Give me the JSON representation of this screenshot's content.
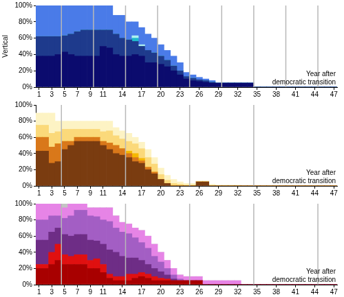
{
  "chart_data": [
    {
      "type": "bar",
      "stacked": true,
      "grid": false,
      "ylabel": "Vertical",
      "xlabel": [
        "Year after",
        "democratic transition"
      ],
      "x": [
        1,
        2,
        3,
        4,
        5,
        6,
        7,
        8,
        9,
        10,
        11,
        12,
        13,
        14,
        15,
        16,
        17,
        18,
        19,
        20,
        21,
        22,
        23,
        24,
        25,
        26,
        27,
        28,
        29,
        30,
        31,
        32,
        33,
        34,
        35,
        36,
        37,
        38,
        39,
        40,
        41,
        42,
        43,
        44,
        45,
        46,
        47
      ],
      "xlim": [
        0.5,
        47.5
      ],
      "xticks": [
        1,
        3,
        5,
        7,
        9,
        11,
        14,
        17,
        20,
        23,
        26,
        29,
        32,
        35,
        38,
        41,
        44,
        47
      ],
      "ylim": [
        0,
        100
      ],
      "yticks": [
        {
          "value": 0,
          "label": "0%"
        },
        {
          "value": 20,
          "label": "20%"
        },
        {
          "value": 40,
          "label": "40%"
        },
        {
          "value": 60,
          "label": "60%"
        },
        {
          "value": 80,
          "label": "80%"
        },
        {
          "value": 100,
          "label": "100%"
        }
      ],
      "vlines": [
        4.5,
        9.5,
        14.5,
        19.5,
        24.5,
        29.5,
        34.5,
        39.5,
        44.5
      ],
      "series": [
        {
          "color": "#0b0b6e",
          "values": [
            38,
            38,
            38,
            40,
            43,
            40,
            38,
            38,
            38,
            38,
            50,
            48,
            40,
            38,
            38,
            40,
            38,
            30,
            30,
            28,
            25,
            20,
            15,
            10,
            8,
            7,
            6,
            5,
            5,
            5,
            5,
            5,
            5,
            5,
            0,
            0,
            0,
            0,
            0,
            0,
            0,
            0,
            0,
            0,
            0,
            0,
            0
          ]
        },
        {
          "color": "#1e3a8c",
          "values": [
            24,
            24,
            24,
            22,
            20,
            25,
            30,
            32,
            32,
            32,
            20,
            22,
            25,
            22,
            20,
            16,
            12,
            15,
            12,
            10,
            8,
            6,
            5,
            3,
            3,
            2,
            2,
            1,
            0,
            0,
            0,
            0,
            0,
            0,
            0,
            0,
            0,
            0,
            0,
            0,
            0,
            0,
            0,
            0,
            0,
            0,
            0
          ]
        },
        {
          "color": "#1fb8cc",
          "values": [
            0,
            0,
            0,
            0,
            0,
            0,
            0,
            0,
            0,
            0,
            0,
            0,
            0,
            0,
            0,
            4,
            0,
            0,
            0,
            0,
            0,
            0,
            0,
            0,
            0,
            0,
            0,
            0,
            0,
            0,
            0,
            0,
            0,
            0,
            0,
            0,
            0,
            0,
            0,
            0,
            0,
            0,
            0,
            0,
            0,
            0,
            0
          ]
        },
        {
          "color": "#aef0f0",
          "values": [
            0,
            0,
            0,
            0,
            0,
            0,
            0,
            0,
            0,
            0,
            0,
            0,
            0,
            0,
            0,
            3,
            2,
            0,
            0,
            0,
            0,
            0,
            0,
            0,
            0,
            0,
            0,
            0,
            0,
            0,
            0,
            0,
            0,
            0,
            0,
            0,
            0,
            0,
            0,
            0,
            0,
            0,
            0,
            0,
            0,
            0,
            0
          ]
        },
        {
          "color": "#4a7be8",
          "values": [
            38,
            38,
            38,
            38,
            37,
            35,
            32,
            30,
            30,
            30,
            30,
            30,
            23,
            28,
            22,
            17,
            21,
            20,
            18,
            14,
            12,
            12,
            10,
            5,
            4,
            3,
            2,
            2,
            0,
            0,
            0,
            0,
            0,
            0,
            0,
            0,
            0,
            0,
            0,
            0,
            0,
            0,
            0,
            0,
            0,
            0,
            0
          ]
        }
      ]
    },
    {
      "type": "bar",
      "stacked": true,
      "grid": false,
      "xlabel": [
        "Year after",
        "democratic transition"
      ],
      "x": [
        1,
        2,
        3,
        4,
        5,
        6,
        7,
        8,
        9,
        10,
        11,
        12,
        13,
        14,
        15,
        16,
        17,
        18,
        19,
        20,
        21,
        22,
        23,
        24,
        25,
        26,
        27,
        28,
        29,
        30,
        31,
        32,
        33,
        34,
        35,
        36,
        37,
        38,
        39,
        40,
        41,
        42,
        43,
        44,
        45,
        46,
        47
      ],
      "xlim": [
        0.5,
        47.5
      ],
      "xticks": [
        1,
        3,
        5,
        7,
        9,
        11,
        14,
        17,
        20,
        23,
        26,
        29,
        32,
        35,
        38,
        41,
        44,
        47
      ],
      "ylim": [
        0,
        100
      ],
      "yticks": [
        {
          "value": 0,
          "label": "0%"
        },
        {
          "value": 20,
          "label": "20%"
        },
        {
          "value": 40,
          "label": "40%"
        },
        {
          "value": 60,
          "label": "60%"
        },
        {
          "value": 80,
          "label": "80%"
        },
        {
          "value": 100,
          "label": "100%"
        }
      ],
      "vlines": [
        4.5,
        14.5,
        24.5,
        34.5
      ],
      "series": [
        {
          "color": "#7a3c10",
          "values": [
            43,
            43,
            28,
            30,
            45,
            50,
            55,
            55,
            55,
            55,
            50,
            45,
            40,
            38,
            35,
            30,
            28,
            20,
            15,
            8,
            3,
            0,
            0,
            0,
            0,
            5,
            5,
            0,
            0,
            0,
            0,
            0,
            0,
            0,
            0,
            0,
            0,
            0,
            0,
            0,
            0,
            0,
            0,
            0,
            0,
            0,
            0
          ]
        },
        {
          "color": "#d9781a",
          "values": [
            17,
            17,
            20,
            22,
            10,
            5,
            5,
            5,
            5,
            5,
            5,
            8,
            10,
            8,
            5,
            5,
            3,
            3,
            2,
            0,
            0,
            0,
            0,
            0,
            0,
            0,
            0,
            0,
            0,
            0,
            0,
            0,
            0,
            0,
            0,
            0,
            0,
            0,
            0,
            0,
            0,
            0,
            0,
            0,
            0,
            0,
            0
          ]
        },
        {
          "color": "#f5b800",
          "values": [
            0,
            0,
            0,
            0,
            0,
            0,
            0,
            0,
            0,
            0,
            0,
            0,
            0,
            0,
            3,
            5,
            3,
            0,
            0,
            0,
            0,
            0,
            0,
            0,
            0,
            0,
            0,
            0,
            0,
            0,
            0,
            0,
            0,
            0,
            0,
            0,
            0,
            0,
            0,
            0,
            0,
            0,
            0,
            0,
            0,
            0,
            0
          ]
        },
        {
          "color": "#fbd97a",
          "values": [
            15,
            15,
            17,
            15,
            15,
            15,
            10,
            10,
            10,
            10,
            12,
            15,
            12,
            12,
            12,
            12,
            12,
            12,
            10,
            6,
            4,
            3,
            2,
            1,
            1,
            0,
            0,
            0,
            0,
            0,
            0,
            0,
            0,
            0,
            0,
            0,
            0,
            0,
            0,
            0,
            0,
            0,
            0,
            0,
            0,
            0,
            0
          ]
        },
        {
          "color": "#fdf3c4",
          "values": [
            15,
            15,
            25,
            13,
            10,
            10,
            10,
            10,
            10,
            10,
            13,
            12,
            10,
            10,
            10,
            8,
            8,
            10,
            8,
            8,
            6,
            5,
            3,
            2,
            2,
            1,
            1,
            2,
            1,
            1,
            1,
            1,
            0,
            0,
            0,
            0,
            0,
            0,
            0,
            0,
            0,
            0,
            0,
            0,
            0,
            0,
            0
          ]
        }
      ]
    },
    {
      "type": "bar",
      "stacked": true,
      "grid": false,
      "xlabel": [
        "Year after",
        "democratic transition"
      ],
      "x": [
        1,
        2,
        3,
        4,
        5,
        6,
        7,
        8,
        9,
        10,
        11,
        12,
        13,
        14,
        15,
        16,
        17,
        18,
        19,
        20,
        21,
        22,
        23,
        24,
        25,
        26,
        27,
        28,
        29,
        30,
        31,
        32,
        33,
        34,
        35,
        36,
        37,
        38,
        39,
        40,
        41,
        42,
        43,
        44,
        45,
        46,
        47
      ],
      "xlim": [
        0.5,
        47.5
      ],
      "xticks": [
        1,
        3,
        5,
        7,
        9,
        11,
        14,
        17,
        20,
        23,
        26,
        29,
        32,
        35,
        38,
        41,
        44,
        47
      ],
      "ylim": [
        0,
        100
      ],
      "yticks": [
        {
          "value": 0,
          "label": "0%"
        },
        {
          "value": 20,
          "label": "20%"
        },
        {
          "value": 40,
          "label": "40%"
        },
        {
          "value": 60,
          "label": "60%"
        },
        {
          "value": 80,
          "label": "80%"
        },
        {
          "value": 100,
          "label": "100%"
        }
      ],
      "vlines": [
        4.5,
        14.5,
        24.5,
        34.5,
        44.5
      ],
      "series": [
        {
          "color": "#a80000",
          "values": [
            20,
            20,
            25,
            30,
            25,
            25,
            25,
            25,
            20,
            20,
            15,
            8,
            5,
            5,
            5,
            8,
            10,
            8,
            5,
            5,
            5,
            5,
            5,
            5,
            5,
            5,
            0,
            0,
            0,
            0,
            0,
            0,
            0,
            0,
            0,
            0,
            0,
            0,
            0,
            0,
            0,
            0,
            0,
            0,
            0,
            0,
            0
          ]
        },
        {
          "color": "#e01010",
          "values": [
            5,
            5,
            15,
            20,
            12,
            10,
            12,
            12,
            10,
            12,
            10,
            5,
            5,
            5,
            8,
            5,
            5,
            5,
            5,
            3,
            2,
            0,
            0,
            0,
            0,
            0,
            0,
            0,
            0,
            0,
            0,
            0,
            0,
            0,
            0,
            0,
            0,
            0,
            0,
            0,
            0,
            0,
            0,
            0,
            0,
            0,
            0
          ]
        },
        {
          "color": "#6e2d86",
          "values": [
            30,
            30,
            25,
            20,
            25,
            25,
            25,
            25,
            25,
            22,
            25,
            30,
            30,
            25,
            20,
            20,
            15,
            12,
            10,
            8,
            5,
            2,
            0,
            0,
            0,
            0,
            0,
            0,
            0,
            0,
            0,
            0,
            0,
            0,
            0,
            0,
            0,
            0,
            0,
            0,
            0,
            0,
            0,
            0,
            0,
            0,
            0
          ]
        },
        {
          "color": "#a35ec4",
          "values": [
            25,
            25,
            20,
            15,
            20,
            25,
            30,
            30,
            30,
            30,
            30,
            35,
            30,
            30,
            30,
            25,
            22,
            20,
            15,
            12,
            8,
            5,
            2,
            0,
            0,
            0,
            0,
            0,
            0,
            0,
            0,
            0,
            0,
            0,
            0,
            0,
            0,
            0,
            0,
            0,
            0,
            0,
            0,
            0,
            0,
            0,
            0
          ]
        },
        {
          "color": "#e684e6",
          "values": [
            20,
            20,
            15,
            15,
            13,
            15,
            8,
            8,
            10,
            11,
            15,
            17,
            15,
            12,
            12,
            12,
            15,
            15,
            15,
            12,
            10,
            8,
            5,
            5,
            5,
            5,
            5,
            5,
            5,
            5,
            5,
            5,
            0,
            0,
            0,
            0,
            0,
            0,
            0,
            0,
            0,
            0,
            0,
            0,
            0,
            0,
            0
          ]
        },
        {
          "color": "#c4c4c4",
          "values": [
            0,
            0,
            0,
            0,
            5,
            0,
            0,
            0,
            0,
            0,
            0,
            0,
            0,
            0,
            0,
            0,
            0,
            0,
            0,
            0,
            0,
            0,
            0,
            0,
            0,
            0,
            0,
            0,
            0,
            0,
            0,
            0,
            0,
            0,
            0,
            0,
            0,
            0,
            0,
            0,
            0,
            0,
            0,
            0,
            0,
            0,
            0
          ]
        }
      ]
    }
  ]
}
